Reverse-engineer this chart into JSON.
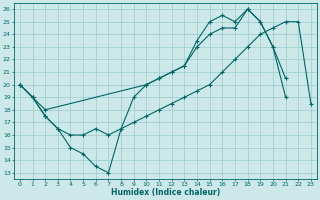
{
  "title": "",
  "xlabel": "Humidex (Indice chaleur)",
  "bg_color": "#cce8e8",
  "grid_color": "#99cccc",
  "line_color": "#006666",
  "xlim": [
    -0.5,
    23.5
  ],
  "ylim": [
    12.5,
    26.5
  ],
  "yticks": [
    13,
    14,
    15,
    16,
    17,
    18,
    19,
    20,
    21,
    22,
    23,
    24,
    25,
    26
  ],
  "xticks": [
    0,
    1,
    2,
    3,
    4,
    5,
    6,
    7,
    8,
    9,
    10,
    11,
    12,
    13,
    14,
    15,
    16,
    17,
    18,
    19,
    20,
    21,
    22,
    23
  ],
  "line1_x": [
    0,
    1,
    2,
    3,
    4,
    5,
    6,
    7,
    8,
    9,
    10,
    11,
    12,
    13,
    14,
    15,
    16,
    17,
    18,
    19,
    20,
    21
  ],
  "line1_y": [
    20,
    19,
    17.5,
    16.5,
    15,
    14.5,
    13.5,
    13,
    16.5,
    19,
    20,
    20.5,
    21,
    21.5,
    23.5,
    25,
    25.5,
    25,
    26,
    25,
    23,
    19
  ],
  "line2_x": [
    0,
    1,
    2,
    3,
    4,
    5,
    6,
    7,
    8,
    9,
    10,
    11,
    12,
    13,
    14,
    15,
    16,
    17,
    18,
    19,
    20,
    21,
    22,
    23
  ],
  "line2_y": [
    20,
    19,
    17.5,
    16.5,
    16,
    16,
    16.5,
    16,
    16.5,
    17,
    17.5,
    18,
    18.5,
    19,
    19.5,
    20,
    21,
    22,
    23,
    24,
    24.5,
    25,
    25,
    18.5
  ],
  "line3_x": [
    0,
    1,
    2,
    10,
    11,
    12,
    13,
    14,
    15,
    16,
    17,
    18,
    19,
    20,
    21
  ],
  "line3_y": [
    20,
    19,
    18,
    20,
    20.5,
    21,
    21.5,
    23,
    24,
    24.5,
    24.5,
    26,
    25,
    23,
    20.5
  ]
}
